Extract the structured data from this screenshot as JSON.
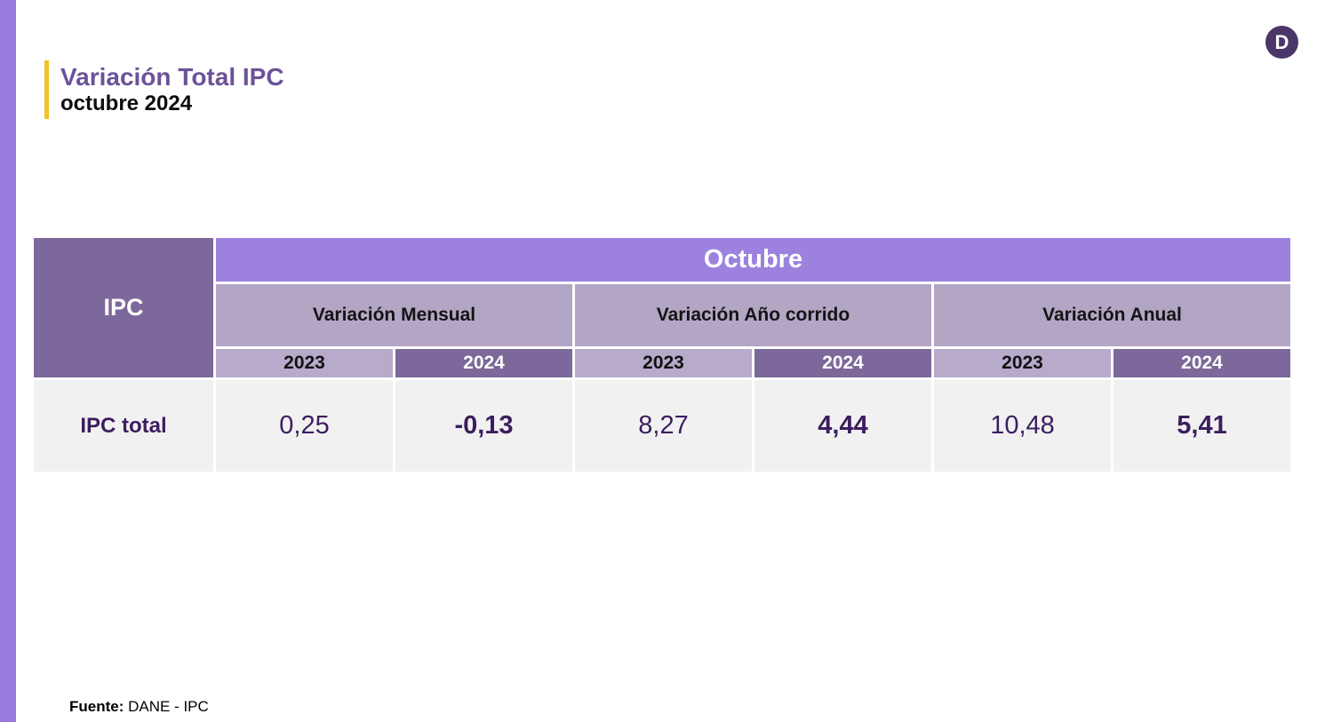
{
  "header": {
    "title": "Variación Total IPC",
    "subtitle": "octubre 2024"
  },
  "logo": {
    "letter": "D"
  },
  "footer": {
    "source_label": "Fuente:",
    "source_text": "DANE - IPC"
  },
  "colors": {
    "sidebar_purple": "#9879E0",
    "month_band_purple": "#9C82DE",
    "dark_cell_purple": "#7C689A",
    "section_purple": "#B3A6C5",
    "year_light_purple": "#B7AACB",
    "data_row_gray": "#F2F1F2",
    "value_text_purple": "#3B1E5F",
    "title_purple": "#6B5299",
    "accent_yellow": "#F2C229",
    "logo_purple": "#4B3669"
  },
  "chart_data": {
    "type": "table",
    "title": "Variación Total IPC",
    "subtitle": "octubre 2024",
    "corner_label": "IPC",
    "month_header": "Octubre",
    "sections": [
      "Variación Mensual",
      "Variación Año corrido",
      "Variación Anual"
    ],
    "year_columns": [
      "2023",
      "2024",
      "2023",
      "2024",
      "2023",
      "2024"
    ],
    "rows": [
      {
        "label": "IPC total",
        "values": [
          "0,25",
          "-0,13",
          "8,27",
          "4,44",
          "10,48",
          "5,41"
        ]
      }
    ],
    "values_numeric": {
      "variacion_mensual": {
        "y2023": 0.25,
        "y2024": -0.13
      },
      "variacion_ano_corrido": {
        "y2023": 8.27,
        "y2024": 4.44
      },
      "variacion_anual": {
        "y2023": 10.48,
        "y2024": 5.41
      }
    },
    "source": "DANE - IPC"
  }
}
